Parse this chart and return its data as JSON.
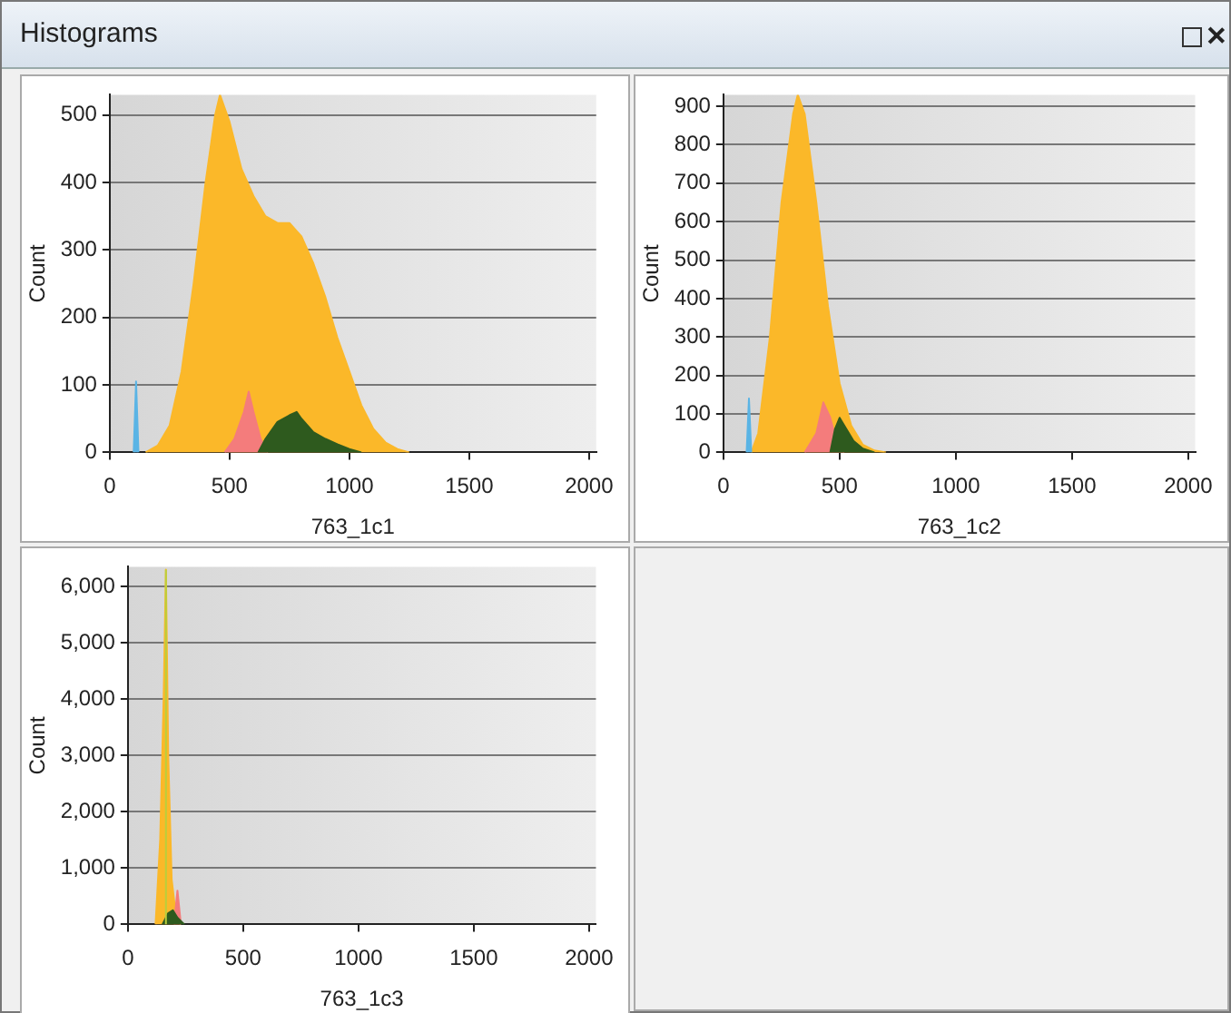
{
  "chart_data": [
    {
      "type": "area",
      "title": "Histograms",
      "xlabel": "763_1c1",
      "ylabel": "Count",
      "xlim": [
        0,
        2030
      ],
      "xticks": [
        0,
        500,
        1000,
        1500,
        2000
      ],
      "ylim": [
        0,
        530
      ],
      "yticks": [
        0,
        100,
        200,
        300,
        400,
        500
      ],
      "grid": "y",
      "legend": false,
      "series": [
        {
          "color": "#fbb829",
          "x": [
            150,
            200,
            250,
            300,
            350,
            400,
            440,
            460,
            480,
            500,
            550,
            600,
            650,
            700,
            750,
            800,
            850,
            900,
            950,
            1000,
            1050,
            1100,
            1150,
            1200,
            1250
          ],
          "values": [
            0,
            10,
            40,
            120,
            250,
            400,
            500,
            530,
            510,
            490,
            420,
            380,
            350,
            340,
            340,
            320,
            280,
            230,
            170,
            120,
            70,
            35,
            15,
            5,
            0
          ]
        },
        {
          "color": "#f47c7c",
          "x": [
            480,
            520,
            560,
            580,
            600,
            630,
            660
          ],
          "values": [
            0,
            20,
            60,
            90,
            60,
            20,
            0
          ]
        },
        {
          "color": "#2e5a1e",
          "x": [
            620,
            650,
            700,
            750,
            780,
            800,
            850,
            900,
            950,
            1000,
            1050
          ],
          "values": [
            0,
            20,
            45,
            55,
            60,
            50,
            30,
            20,
            12,
            5,
            0
          ]
        },
        {
          "color": "#5ab4e5",
          "x": [
            100,
            110,
            120
          ],
          "values": [
            0,
            105,
            0
          ]
        }
      ]
    },
    {
      "type": "area",
      "xlabel": "763_1c2",
      "ylabel": "Count",
      "xlim": [
        0,
        2030
      ],
      "xticks": [
        0,
        500,
        1000,
        1500,
        2000
      ],
      "ylim": [
        0,
        930
      ],
      "yticks": [
        0,
        100,
        200,
        300,
        400,
        500,
        600,
        700,
        800,
        900
      ],
      "grid": "y",
      "legend": false,
      "series": [
        {
          "color": "#fbb829",
          "x": [
            120,
            150,
            200,
            250,
            300,
            320,
            350,
            400,
            450,
            500,
            550,
            600,
            650,
            700
          ],
          "values": [
            0,
            50,
            300,
            650,
            880,
            930,
            880,
            650,
            380,
            180,
            70,
            20,
            5,
            0
          ]
        },
        {
          "color": "#f47c7c",
          "x": [
            350,
            400,
            430,
            460,
            490,
            520
          ],
          "values": [
            0,
            50,
            130,
            90,
            20,
            0
          ]
        },
        {
          "color": "#2e5a1e",
          "x": [
            460,
            480,
            500,
            530,
            560,
            600,
            650
          ],
          "values": [
            0,
            60,
            90,
            60,
            30,
            10,
            0
          ]
        },
        {
          "color": "#5ab4e5",
          "x": [
            100,
            110,
            120
          ],
          "values": [
            0,
            140,
            0
          ]
        }
      ]
    },
    {
      "type": "area",
      "xlabel": "763_1c3",
      "ylabel": "Count",
      "xlim": [
        0,
        2030
      ],
      "xticks": [
        0,
        500,
        1000,
        1500,
        2000
      ],
      "ylim": [
        0,
        6350
      ],
      "yticks": [
        0,
        {
          "value": 1000,
          "label": "1,000"
        },
        {
          "value": 2000,
          "label": "2,000"
        },
        {
          "value": 3000,
          "label": "3,000"
        },
        {
          "value": 4000,
          "label": "4,000"
        },
        {
          "value": 5000,
          "label": "5,000"
        },
        {
          "value": 6000,
          "label": "6,000"
        }
      ],
      "grid": "y",
      "legend": false,
      "series": [
        {
          "color": "#fbb829",
          "x": [
            120,
            140,
            155,
            165,
            175,
            190,
            210,
            230
          ],
          "values": [
            0,
            1500,
            4000,
            6300,
            3000,
            800,
            100,
            0
          ]
        },
        {
          "color": "#f47c7c",
          "x": [
            200,
            215,
            230
          ],
          "values": [
            0,
            600,
            0
          ]
        },
        {
          "color": "#2e5a1e",
          "x": [
            150,
            175,
            195,
            215,
            245
          ],
          "values": [
            0,
            200,
            250,
            120,
            0
          ]
        },
        {
          "type": "line",
          "color": "#b9cf3c",
          "x": [
            165,
            165
          ],
          "values": [
            0,
            6300
          ]
        }
      ]
    }
  ]
}
